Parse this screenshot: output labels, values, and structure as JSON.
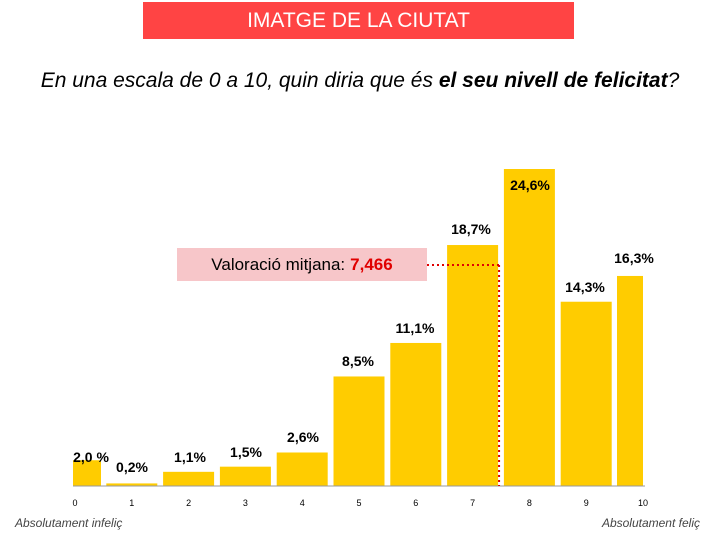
{
  "header": {
    "title": "IMATGE DE LA CIUTAT"
  },
  "question": {
    "part1": "En una escala de 0 a 10, quin diria que és ",
    "bold": "el seu nivell de felicitat",
    "part2": "?"
  },
  "average": {
    "label": "Valoració mitjana:",
    "value": "7,466",
    "numeric": 7.466
  },
  "footer": {
    "left": "Absolutament infeliç",
    "right": "Absolutament feliç"
  },
  "colors": {
    "bar": "#ffcc00",
    "accent": "#ff4444",
    "avg_box": "#f7c6c9",
    "dotted": "#e00000"
  },
  "chart_data": {
    "type": "bar",
    "title": "En una escala de 0 a 10, quin diria que és el seu nivell de felicitat?",
    "xlabel": "",
    "ylabel": "",
    "categories": [
      "0",
      "1",
      "2",
      "3",
      "4",
      "5",
      "6",
      "7",
      "8",
      "9",
      "10"
    ],
    "values": [
      2.0,
      0.2,
      1.1,
      1.5,
      2.6,
      8.5,
      11.1,
      18.7,
      24.6,
      14.3,
      16.3
    ],
    "labels": [
      "2,0 %",
      "0,2%",
      "1,1%",
      "1,5%",
      "2,6%",
      "8,5%",
      "11,1%",
      "18,7%",
      "24,6%",
      "14,3%",
      "16,3%"
    ],
    "ylim": [
      0,
      24.6
    ],
    "grid": false,
    "legend": "none"
  }
}
